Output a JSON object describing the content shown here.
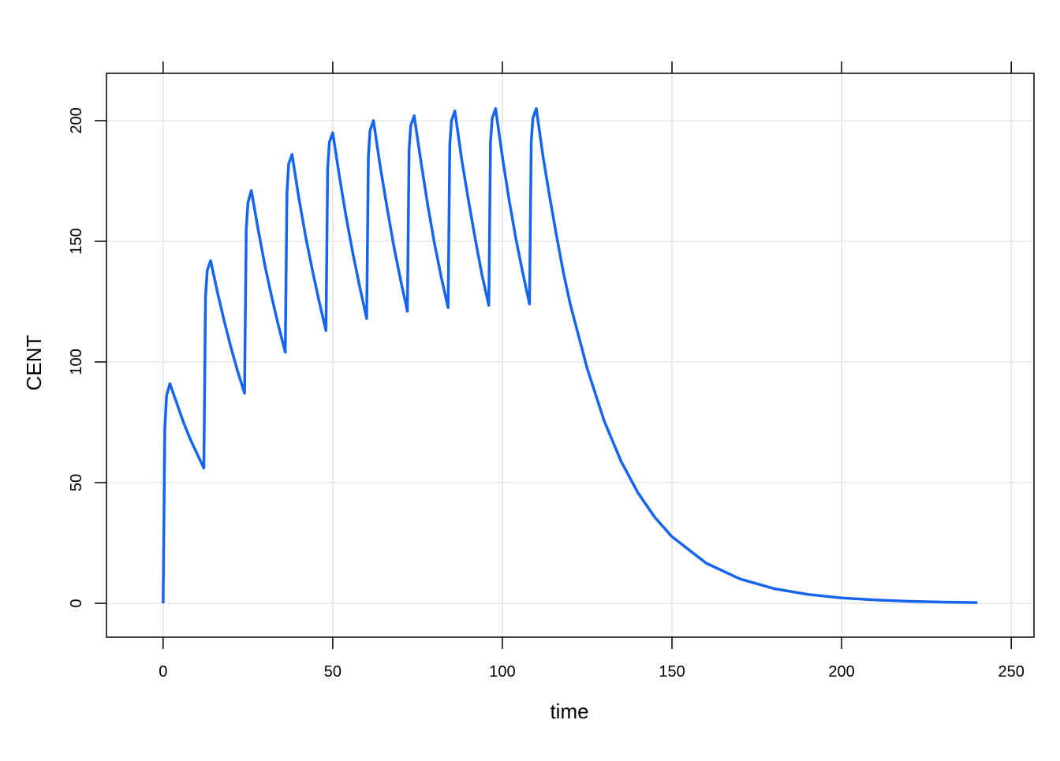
{
  "chart_data": {
    "type": "line",
    "x_label": "time",
    "y_label": "CENT",
    "x": [
      0,
      0.5,
      1,
      2,
      4,
      6,
      8,
      10,
      12,
      12.5,
      13,
      14,
      16,
      18,
      20,
      22,
      24,
      24.5,
      25,
      26,
      28,
      30,
      32,
      34,
      36,
      36.5,
      37,
      38,
      40,
      42,
      44,
      46,
      48,
      48.5,
      49,
      50,
      52,
      54,
      56,
      58,
      60,
      60.5,
      61,
      62,
      64,
      66,
      68,
      70,
      72,
      72.5,
      73,
      74,
      76,
      78,
      80,
      82,
      84,
      84.5,
      85,
      86,
      88,
      90,
      92,
      94,
      96,
      96.5,
      97,
      98,
      100,
      102,
      104,
      106,
      108,
      108.5,
      109,
      110,
      112,
      114,
      116,
      118,
      120,
      125,
      130,
      135,
      140,
      145,
      150,
      160,
      170,
      180,
      190,
      200,
      210,
      220,
      230,
      240
    ],
    "series": [
      {
        "name": "CENT",
        "color": "#1565f0",
        "values": [
          0,
          72,
          86,
          91,
          83,
          75,
          68,
          62,
          56,
          127,
          138,
          142,
          129,
          117,
          106,
          96,
          87,
          155,
          166,
          171,
          155,
          140,
          127,
          115,
          104,
          170,
          182,
          186,
          168,
          152,
          138,
          125,
          113,
          180,
          191,
          195,
          176.5,
          159.7,
          144.5,
          130.8,
          118,
          185,
          196,
          200,
          181,
          164,
          148,
          134,
          121,
          188,
          198,
          202,
          183,
          165,
          149,
          135,
          122.5,
          190,
          200,
          204,
          184,
          167,
          151,
          136,
          123.5,
          191,
          201,
          205,
          185,
          167,
          151,
          137,
          124,
          191,
          201,
          205,
          185,
          168,
          152,
          137,
          124,
          97.3,
          75.6,
          58.8,
          45.7,
          35.5,
          27.6,
          16.7,
          10.1,
          6.1,
          3.7,
          2.2,
          1.4,
          0.8,
          0.5,
          0.3
        ]
      }
    ],
    "xlim": [
      -16.7,
      256.7
    ],
    "ylim": [
      -14.05,
      219.6
    ],
    "xticks": [
      0,
      50,
      100,
      150,
      200,
      250
    ],
    "yticks": [
      0,
      50,
      100,
      150,
      200
    ],
    "grid": true
  }
}
